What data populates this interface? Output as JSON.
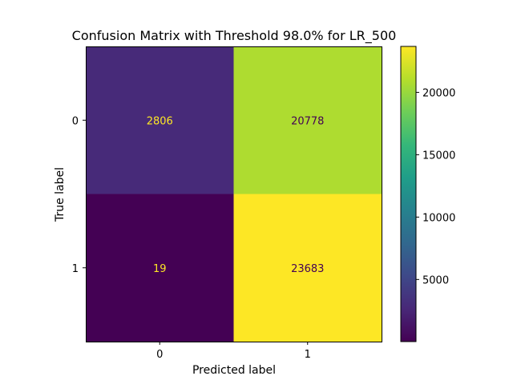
{
  "chart_data": {
    "type": "heatmap",
    "title": "Confusion Matrix with Threshold 98.0% for LR_500",
    "xlabel": "Predicted label",
    "ylabel": "True label",
    "x_categories": [
      "0",
      "1"
    ],
    "y_categories": [
      "0",
      "1"
    ],
    "values": [
      [
        2806,
        20778
      ],
      [
        19,
        23683
      ]
    ],
    "colormap": "viridis",
    "value_range": [
      19,
      23683
    ],
    "colorbar_ticks": [
      5000,
      10000,
      15000,
      20000
    ],
    "colorbar_tick_labels": [
      "5000",
      "10000",
      "15000",
      "20000"
    ],
    "grid": false
  }
}
